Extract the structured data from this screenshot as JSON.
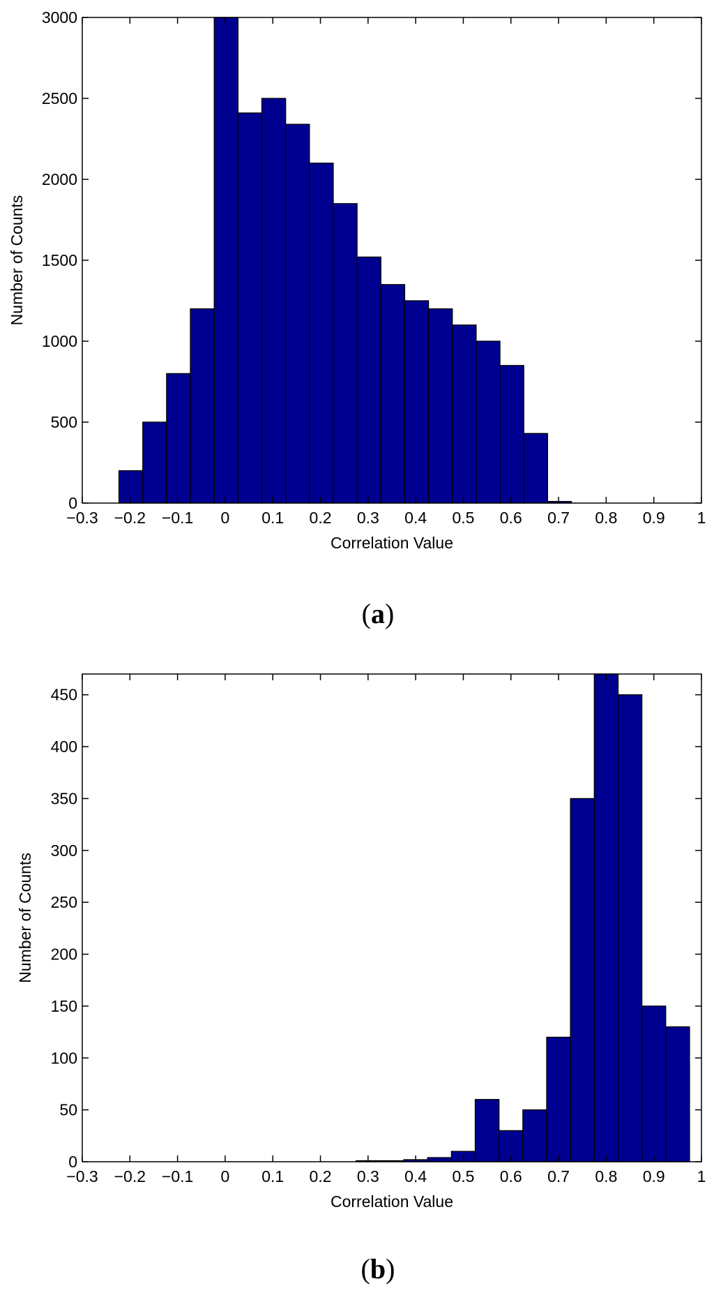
{
  "chart_data": [
    {
      "type": "bar",
      "panel_label": "a",
      "title": "",
      "xlabel": "Correlation Value",
      "ylabel": "Number of Counts",
      "xlim": [
        -0.3,
        1
      ],
      "ylim": [
        0,
        3000
      ],
      "xticks": [
        -0.3,
        -0.2,
        -0.1,
        0,
        0.1,
        0.2,
        0.3,
        0.4,
        0.5,
        0.6,
        0.7,
        0.8,
        0.9,
        1
      ],
      "xtick_labels": [
        "−0.3",
        "−0.2",
        "−0.1",
        "0",
        "0.1",
        "0.2",
        "0.3",
        "0.4",
        "0.5",
        "0.6",
        "0.7",
        "0.8",
        "0.9",
        "1"
      ],
      "yticks": [
        0,
        500,
        1000,
        1500,
        2000,
        2500,
        3000
      ],
      "ytick_labels": [
        "0",
        "500",
        "1000",
        "1500",
        "2000",
        "2500",
        "3000"
      ],
      "bin_width": 0.05,
      "bin_centers": [
        -0.198,
        -0.148,
        -0.098,
        -0.048,
        0.002,
        0.052,
        0.102,
        0.152,
        0.202,
        0.252,
        0.302,
        0.352,
        0.402,
        0.452,
        0.502,
        0.552,
        0.602,
        0.652,
        0.702
      ],
      "values": [
        200,
        500,
        800,
        1200,
        3000,
        2410,
        2500,
        2340,
        2100,
        1850,
        1520,
        1350,
        1250,
        1200,
        1100,
        1000,
        850,
        430,
        10
      ],
      "bar_color": "#000090",
      "edge_color": "#000000",
      "grid": false
    },
    {
      "type": "bar",
      "panel_label": "b",
      "title": "",
      "xlabel": "Correlation Value",
      "ylabel": "Number of Counts",
      "xlim": [
        -0.3,
        1
      ],
      "ylim": [
        0,
        470
      ],
      "xticks": [
        -0.3,
        -0.2,
        -0.1,
        0,
        0.1,
        0.2,
        0.3,
        0.4,
        0.5,
        0.6,
        0.7,
        0.8,
        0.9,
        1
      ],
      "xtick_labels": [
        "−0.3",
        "−0.2",
        "−0.1",
        "0",
        "0.1",
        "0.2",
        "0.3",
        "0.4",
        "0.5",
        "0.6",
        "0.7",
        "0.8",
        "0.9",
        "1"
      ],
      "yticks": [
        0,
        50,
        100,
        150,
        200,
        250,
        300,
        350,
        400,
        450
      ],
      "ytick_labels": [
        "0",
        "50",
        "100",
        "150",
        "200",
        "250",
        "300",
        "350",
        "400",
        "450"
      ],
      "bin_width": 0.05,
      "bin_centers": [
        0.3,
        0.35,
        0.4,
        0.45,
        0.5,
        0.55,
        0.6,
        0.65,
        0.7,
        0.75,
        0.8,
        0.85,
        0.9,
        0.95
      ],
      "values": [
        1,
        1,
        2,
        4,
        10,
        60,
        30,
        50,
        120,
        350,
        470,
        450,
        150,
        130
      ],
      "bar_color": "#000090",
      "edge_color": "#000000",
      "grid": false
    }
  ]
}
